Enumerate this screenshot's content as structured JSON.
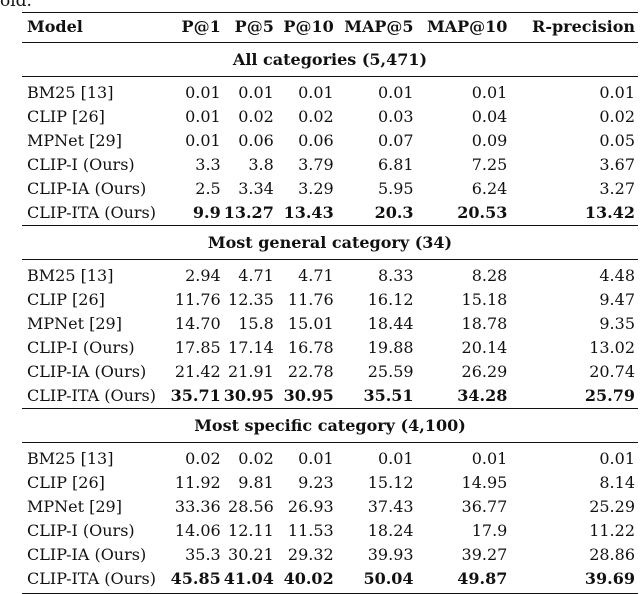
{
  "fragment": "old.",
  "header": {
    "model": "Model",
    "p1": "P@1",
    "p5": "P@5",
    "p10": "P@10",
    "map5": "MAP@5",
    "map10": "MAP@10",
    "rprec": "R-precision"
  },
  "sections": [
    {
      "title": "All categories (5,471)",
      "rows": [
        [
          "BM25 [13]",
          "0.01",
          "0.01",
          "0.01",
          "0.01",
          "0.01",
          "0.01"
        ],
        [
          "CLIP [26]",
          "0.01",
          "0.02",
          "0.02",
          "0.03",
          "0.04",
          "0.02"
        ],
        [
          "MPNet [29]",
          "0.01",
          "0.06",
          "0.06",
          "0.07",
          "0.09",
          "0.05"
        ],
        [
          "CLIP-I (Ours)",
          "3.3",
          "3.8",
          "3.79",
          "6.81",
          "7.25",
          "3.67"
        ],
        [
          "CLIP-IA (Ours)",
          "2.5",
          "3.34",
          "3.29",
          "5.95",
          "6.24",
          "3.27"
        ],
        [
          "CLIP-ITA (Ours)",
          "9.9",
          "13.27",
          "13.43",
          "20.3",
          "20.53",
          "13.42"
        ]
      ]
    },
    {
      "title": "Most general category (34)",
      "rows": [
        [
          "BM25 [13]",
          "2.94",
          "4.71",
          "4.71",
          "8.33",
          "8.28",
          "4.48"
        ],
        [
          "CLIP [26]",
          "11.76",
          "12.35",
          "11.76",
          "16.12",
          "15.18",
          "9.47"
        ],
        [
          "MPNet [29]",
          "14.70",
          "15.8",
          "15.01",
          "18.44",
          "18.78",
          "9.35"
        ],
        [
          "CLIP-I (Ours)",
          "17.85",
          "17.14",
          "16.78",
          "19.88",
          "20.14",
          "13.02"
        ],
        [
          "CLIP-IA (Ours)",
          "21.42",
          "21.91",
          "22.78",
          "25.59",
          "26.29",
          "20.74"
        ],
        [
          "CLIP-ITA (Ours)",
          "35.71",
          "30.95",
          "30.95",
          "35.51",
          "34.28",
          "25.79"
        ]
      ]
    },
    {
      "title": "Most specific category (4,100)",
      "rows": [
        [
          "BM25 [13]",
          "0.02",
          "0.02",
          "0.01",
          "0.01",
          "0.01",
          "0.01"
        ],
        [
          "CLIP [26]",
          "11.92",
          "9.81",
          "9.23",
          "15.12",
          "14.95",
          "8.14"
        ],
        [
          "MPNet [29]",
          "33.36",
          "28.56",
          "26.93",
          "37.43",
          "36.77",
          "25.29"
        ],
        [
          "CLIP-I (Ours)",
          "14.06",
          "12.11",
          "11.53",
          "18.24",
          "17.9",
          "11.22"
        ],
        [
          "CLIP-IA (Ours)",
          "35.3",
          "30.21",
          "29.32",
          "39.93",
          "39.27",
          "28.86"
        ],
        [
          "CLIP-ITA (Ours)",
          "45.85",
          "41.04",
          "40.02",
          "50.04",
          "49.87",
          "39.69"
        ]
      ]
    }
  ]
}
